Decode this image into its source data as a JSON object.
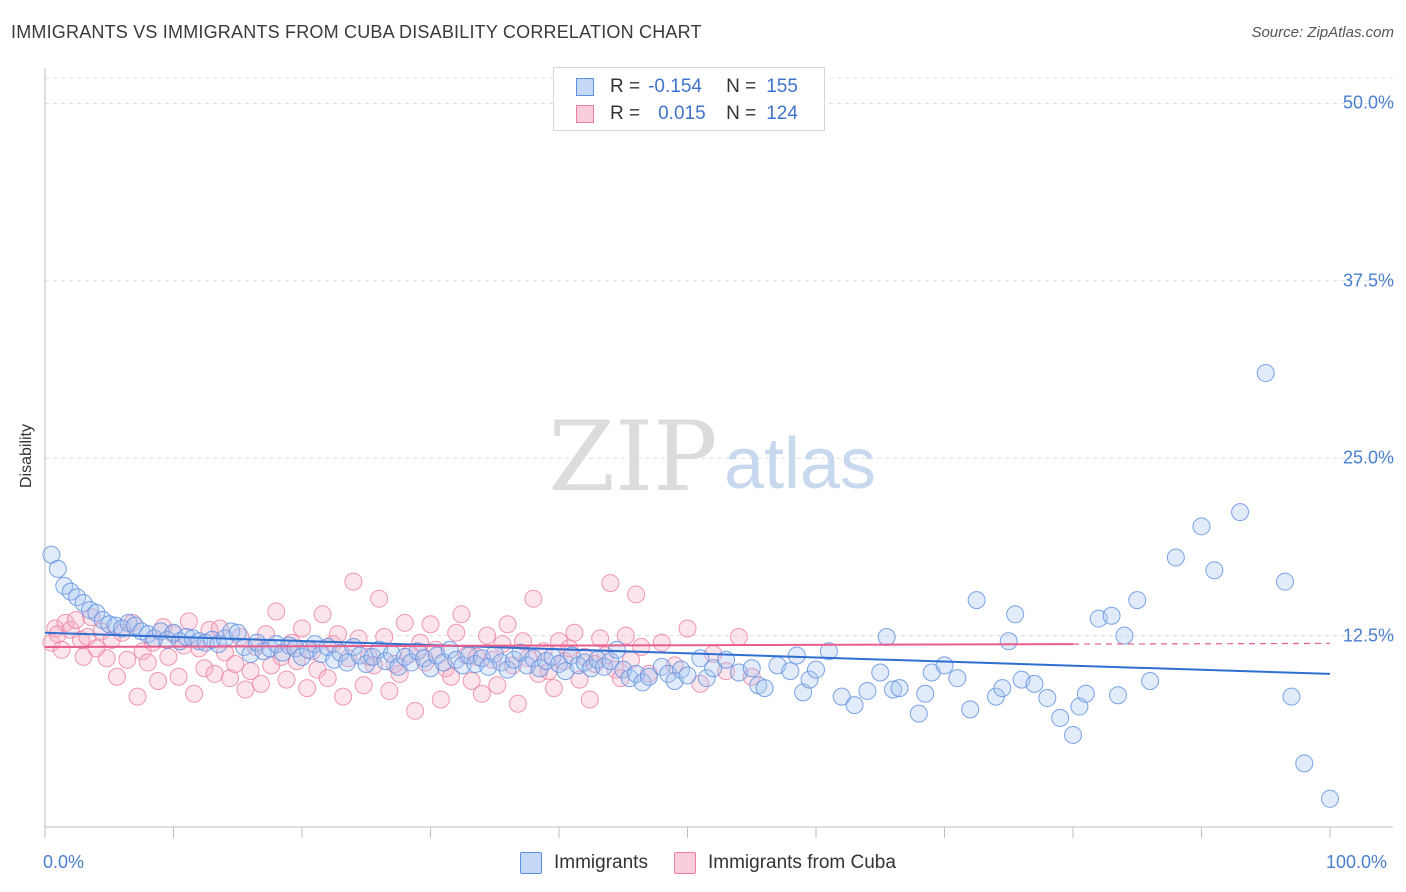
{
  "title": "IMMIGRANTS VS IMMIGRANTS FROM CUBA DISABILITY CORRELATION CHART",
  "source": "Source: ZipAtlas.com",
  "watermark": {
    "zip": "ZIP",
    "atlas": "atlas"
  },
  "legend": {
    "rows": [
      {
        "r_label": "R =",
        "r_value": "-0.154",
        "n_label": "N =",
        "n_value": "155"
      },
      {
        "r_label": "R =",
        "r_value": "0.015",
        "n_label": "N =",
        "n_value": "124"
      }
    ]
  },
  "bottom_legend": [
    "Immigrants",
    "Immigrants from Cuba"
  ],
  "colors": {
    "blue": "#5b8fe0",
    "pink": "#ec7fa3",
    "blue_line": "#2f6fd0",
    "pink_line": "#e85d8c"
  },
  "chart_data": {
    "type": "scatter",
    "xlabel": "",
    "ylabel": "Disability",
    "xlim": [
      0,
      100
    ],
    "ylim": [
      0,
      52
    ],
    "x_tick_labels": [
      "0.0%",
      "100.0%"
    ],
    "y_ticks": [
      12.5,
      25.0,
      37.5,
      50.0
    ],
    "y_tick_labels": [
      "12.5%",
      "25.0%",
      "37.5%",
      "50.0%"
    ],
    "grid": true,
    "series": [
      {
        "name": "Immigrants",
        "color": "#5b8fe0",
        "trend": {
          "x": [
            0,
            100
          ],
          "y": [
            12.7,
            9.8
          ]
        },
        "points": [
          [
            0.5,
            18.2
          ],
          [
            1.0,
            17.2
          ],
          [
            1.5,
            16.0
          ],
          [
            2.0,
            15.6
          ],
          [
            2.5,
            15.2
          ],
          [
            3.0,
            14.8
          ],
          [
            3.5,
            14.3
          ],
          [
            4.0,
            14.1
          ],
          [
            4.5,
            13.6
          ],
          [
            5.0,
            13.3
          ],
          [
            5.5,
            13.2
          ],
          [
            6.0,
            13.0
          ],
          [
            6.5,
            13.4
          ],
          [
            7.0,
            13.2
          ],
          [
            7.5,
            12.8
          ],
          [
            8.0,
            12.6
          ],
          [
            8.5,
            12.3
          ],
          [
            9.0,
            12.8
          ],
          [
            9.5,
            12.2
          ],
          [
            10.0,
            12.7
          ],
          [
            10.5,
            12.1
          ],
          [
            11.0,
            12.4
          ],
          [
            11.5,
            12.3
          ],
          [
            12.0,
            12.1
          ],
          [
            12.5,
            12.0
          ],
          [
            13.0,
            12.2
          ],
          [
            13.5,
            11.9
          ],
          [
            14.0,
            12.3
          ],
          [
            14.5,
            12.8
          ],
          [
            15.0,
            12.7
          ],
          [
            15.5,
            11.7
          ],
          [
            16.0,
            11.2
          ],
          [
            16.5,
            12.0
          ],
          [
            17.0,
            11.4
          ],
          [
            17.5,
            11.6
          ],
          [
            18.0,
            11.9
          ],
          [
            18.5,
            11.3
          ],
          [
            19.0,
            11.8
          ],
          [
            19.5,
            11.6
          ],
          [
            20.0,
            11.0
          ],
          [
            20.5,
            11.5
          ],
          [
            21.0,
            11.9
          ],
          [
            21.5,
            11.2
          ],
          [
            22.0,
            11.7
          ],
          [
            22.5,
            10.8
          ],
          [
            23.0,
            11.3
          ],
          [
            23.5,
            10.6
          ],
          [
            24.0,
            11.7
          ],
          [
            24.5,
            11.1
          ],
          [
            25.0,
            10.5
          ],
          [
            25.5,
            11.0
          ],
          [
            26.0,
            11.5
          ],
          [
            26.5,
            10.7
          ],
          [
            27.0,
            11.2
          ],
          [
            27.5,
            10.3
          ],
          [
            28.0,
            11.0
          ],
          [
            28.5,
            10.6
          ],
          [
            29.0,
            11.4
          ],
          [
            29.5,
            10.9
          ],
          [
            30.0,
            10.2
          ],
          [
            30.5,
            11.1
          ],
          [
            31.0,
            10.6
          ],
          [
            31.5,
            11.5
          ],
          [
            32.0,
            10.8
          ],
          [
            32.5,
            10.4
          ],
          [
            33.0,
            11.1
          ],
          [
            33.5,
            10.5
          ],
          [
            34.0,
            10.9
          ],
          [
            34.5,
            10.3
          ],
          [
            35.0,
            11.2
          ],
          [
            35.5,
            10.6
          ],
          [
            36.0,
            10.1
          ],
          [
            36.5,
            10.8
          ],
          [
            37.0,
            11.3
          ],
          [
            37.5,
            10.4
          ],
          [
            38.0,
            10.9
          ],
          [
            38.5,
            10.2
          ],
          [
            39.0,
            10.7
          ],
          [
            39.5,
            11.0
          ],
          [
            40.0,
            10.5
          ],
          [
            40.5,
            10.0
          ],
          [
            41.0,
            11.1
          ],
          [
            41.5,
            10.4
          ],
          [
            42.0,
            10.6
          ],
          [
            42.5,
            10.2
          ],
          [
            43.0,
            10.8
          ],
          [
            43.5,
            10.3
          ],
          [
            44.0,
            10.7
          ],
          [
            44.5,
            11.5
          ],
          [
            45.0,
            10.1
          ],
          [
            45.5,
            9.5
          ],
          [
            46.0,
            9.8
          ],
          [
            46.5,
            9.2
          ],
          [
            47.0,
            9.6
          ],
          [
            48.0,
            10.3
          ],
          [
            48.5,
            9.8
          ],
          [
            49.0,
            9.3
          ],
          [
            49.5,
            10.1
          ],
          [
            50.0,
            9.7
          ],
          [
            51.0,
            10.9
          ],
          [
            51.5,
            9.5
          ],
          [
            52.0,
            10.2
          ],
          [
            53.0,
            10.8
          ],
          [
            54.0,
            9.9
          ],
          [
            55.0,
            10.2
          ],
          [
            55.5,
            9.0
          ],
          [
            56.0,
            8.8
          ],
          [
            57.0,
            10.4
          ],
          [
            58.0,
            10.0
          ],
          [
            58.5,
            11.1
          ],
          [
            59.0,
            8.5
          ],
          [
            59.5,
            9.4
          ],
          [
            60.0,
            10.1
          ],
          [
            61.0,
            11.4
          ],
          [
            62.0,
            8.2
          ],
          [
            63.0,
            7.6
          ],
          [
            64.0,
            8.6
          ],
          [
            65.0,
            9.9
          ],
          [
            65.5,
            12.4
          ],
          [
            66.0,
            8.7
          ],
          [
            66.5,
            8.8
          ],
          [
            68.0,
            7.0
          ],
          [
            68.5,
            8.4
          ],
          [
            69.0,
            9.9
          ],
          [
            70.0,
            10.4
          ],
          [
            71.0,
            9.5
          ],
          [
            72.0,
            7.3
          ],
          [
            72.5,
            15.0
          ],
          [
            74.0,
            8.2
          ],
          [
            74.5,
            8.8
          ],
          [
            75.0,
            12.1
          ],
          [
            75.5,
            14.0
          ],
          [
            76.0,
            9.4
          ],
          [
            77.0,
            9.1
          ],
          [
            78.0,
            8.1
          ],
          [
            79.0,
            6.7
          ],
          [
            80.0,
            5.5
          ],
          [
            80.5,
            7.5
          ],
          [
            81.0,
            8.4
          ],
          [
            82.0,
            13.7
          ],
          [
            83.0,
            13.9
          ],
          [
            83.5,
            8.3
          ],
          [
            84.0,
            12.5
          ],
          [
            85.0,
            15.0
          ],
          [
            86.0,
            9.3
          ],
          [
            88.0,
            18.0
          ],
          [
            90.0,
            20.2
          ],
          [
            91.0,
            17.1
          ],
          [
            93.0,
            21.2
          ],
          [
            95.0,
            31.0
          ],
          [
            96.5,
            16.3
          ],
          [
            97.0,
            8.2
          ],
          [
            98.0,
            3.5
          ],
          [
            100.0,
            1.0
          ]
        ]
      },
      {
        "name": "Immigrants from Cuba",
        "color": "#ec7fa3",
        "trend": {
          "x": [
            0,
            80
          ],
          "y": [
            11.7,
            11.9
          ]
        },
        "points": [
          [
            0.5,
            12.0
          ],
          [
            0.8,
            13.0
          ],
          [
            1.0,
            12.6
          ],
          [
            1.3,
            11.5
          ],
          [
            1.6,
            13.4
          ],
          [
            2.0,
            12.9
          ],
          [
            2.4,
            13.6
          ],
          [
            2.8,
            12.2
          ],
          [
            3.0,
            11.0
          ],
          [
            3.3,
            12.4
          ],
          [
            3.6,
            13.8
          ],
          [
            4.0,
            11.6
          ],
          [
            4.4,
            12.8
          ],
          [
            4.8,
            10.9
          ],
          [
            5.2,
            12.2
          ],
          [
            5.6,
            9.6
          ],
          [
            6.0,
            12.7
          ],
          [
            6.4,
            10.8
          ],
          [
            6.8,
            13.4
          ],
          [
            7.2,
            8.2
          ],
          [
            7.6,
            11.4
          ],
          [
            8.0,
            10.6
          ],
          [
            8.4,
            12.0
          ],
          [
            8.8,
            9.3
          ],
          [
            9.2,
            13.1
          ],
          [
            9.6,
            11.0
          ],
          [
            10.0,
            12.6
          ],
          [
            10.4,
            9.6
          ],
          [
            10.8,
            11.8
          ],
          [
            11.2,
            13.5
          ],
          [
            11.6,
            8.4
          ],
          [
            12.0,
            11.6
          ],
          [
            12.4,
            10.2
          ],
          [
            12.8,
            12.9
          ],
          [
            13.2,
            9.8
          ],
          [
            13.6,
            13.0
          ],
          [
            14.0,
            11.3
          ],
          [
            14.4,
            9.5
          ],
          [
            14.8,
            10.5
          ],
          [
            15.2,
            12.4
          ],
          [
            15.6,
            8.7
          ],
          [
            16.0,
            10.0
          ],
          [
            16.4,
            11.7
          ],
          [
            16.8,
            9.1
          ],
          [
            17.2,
            12.6
          ],
          [
            17.6,
            10.4
          ],
          [
            18.0,
            14.2
          ],
          [
            18.4,
            11.0
          ],
          [
            18.8,
            9.4
          ],
          [
            19.2,
            12.0
          ],
          [
            19.6,
            10.7
          ],
          [
            20.0,
            13.0
          ],
          [
            20.4,
            8.8
          ],
          [
            20.8,
            11.4
          ],
          [
            21.2,
            10.1
          ],
          [
            21.6,
            14.0
          ],
          [
            22.0,
            9.5
          ],
          [
            22.4,
            11.9
          ],
          [
            22.8,
            12.6
          ],
          [
            23.2,
            8.2
          ],
          [
            23.6,
            10.9
          ],
          [
            24.0,
            16.3
          ],
          [
            24.4,
            12.3
          ],
          [
            24.8,
            9.0
          ],
          [
            25.2,
            11.0
          ],
          [
            25.6,
            10.4
          ],
          [
            26.0,
            15.1
          ],
          [
            26.4,
            12.4
          ],
          [
            26.8,
            8.6
          ],
          [
            27.2,
            10.5
          ],
          [
            27.6,
            9.8
          ],
          [
            28.0,
            13.4
          ],
          [
            28.4,
            11.2
          ],
          [
            28.8,
            7.2
          ],
          [
            29.2,
            12.0
          ],
          [
            29.6,
            10.6
          ],
          [
            30.0,
            13.3
          ],
          [
            30.4,
            11.5
          ],
          [
            30.8,
            8.0
          ],
          [
            31.2,
            10.2
          ],
          [
            31.6,
            9.6
          ],
          [
            32.0,
            12.7
          ],
          [
            32.4,
            14.0
          ],
          [
            32.8,
            11.1
          ],
          [
            33.2,
            9.3
          ],
          [
            33.6,
            11.0
          ],
          [
            34.0,
            8.4
          ],
          [
            34.4,
            12.5
          ],
          [
            34.8,
            10.8
          ],
          [
            35.2,
            9.0
          ],
          [
            35.6,
            11.9
          ],
          [
            36.0,
            13.3
          ],
          [
            36.4,
            10.4
          ],
          [
            36.8,
            7.7
          ],
          [
            37.2,
            12.1
          ],
          [
            37.6,
            10.9
          ],
          [
            38.0,
            15.1
          ],
          [
            38.4,
            9.8
          ],
          [
            38.8,
            11.4
          ],
          [
            39.2,
            10.0
          ],
          [
            39.6,
            8.8
          ],
          [
            40.0,
            12.1
          ],
          [
            40.4,
            10.7
          ],
          [
            40.8,
            11.6
          ],
          [
            41.2,
            12.7
          ],
          [
            41.6,
            9.4
          ],
          [
            42.0,
            11.0
          ],
          [
            42.4,
            8.0
          ],
          [
            42.8,
            10.5
          ],
          [
            43.2,
            12.3
          ],
          [
            43.6,
            11.1
          ],
          [
            44.0,
            16.2
          ],
          [
            44.4,
            10.1
          ],
          [
            44.8,
            9.5
          ],
          [
            45.2,
            12.5
          ],
          [
            45.6,
            10.8
          ],
          [
            46.0,
            15.4
          ],
          [
            46.4,
            11.7
          ],
          [
            47.0,
            9.8
          ],
          [
            48.0,
            12.0
          ],
          [
            49.0,
            10.4
          ],
          [
            50.0,
            13.0
          ],
          [
            51.0,
            9.1
          ],
          [
            52.0,
            11.2
          ],
          [
            53.0,
            10.0
          ],
          [
            54.0,
            12.4
          ],
          [
            55.0,
            9.6
          ]
        ]
      }
    ]
  }
}
